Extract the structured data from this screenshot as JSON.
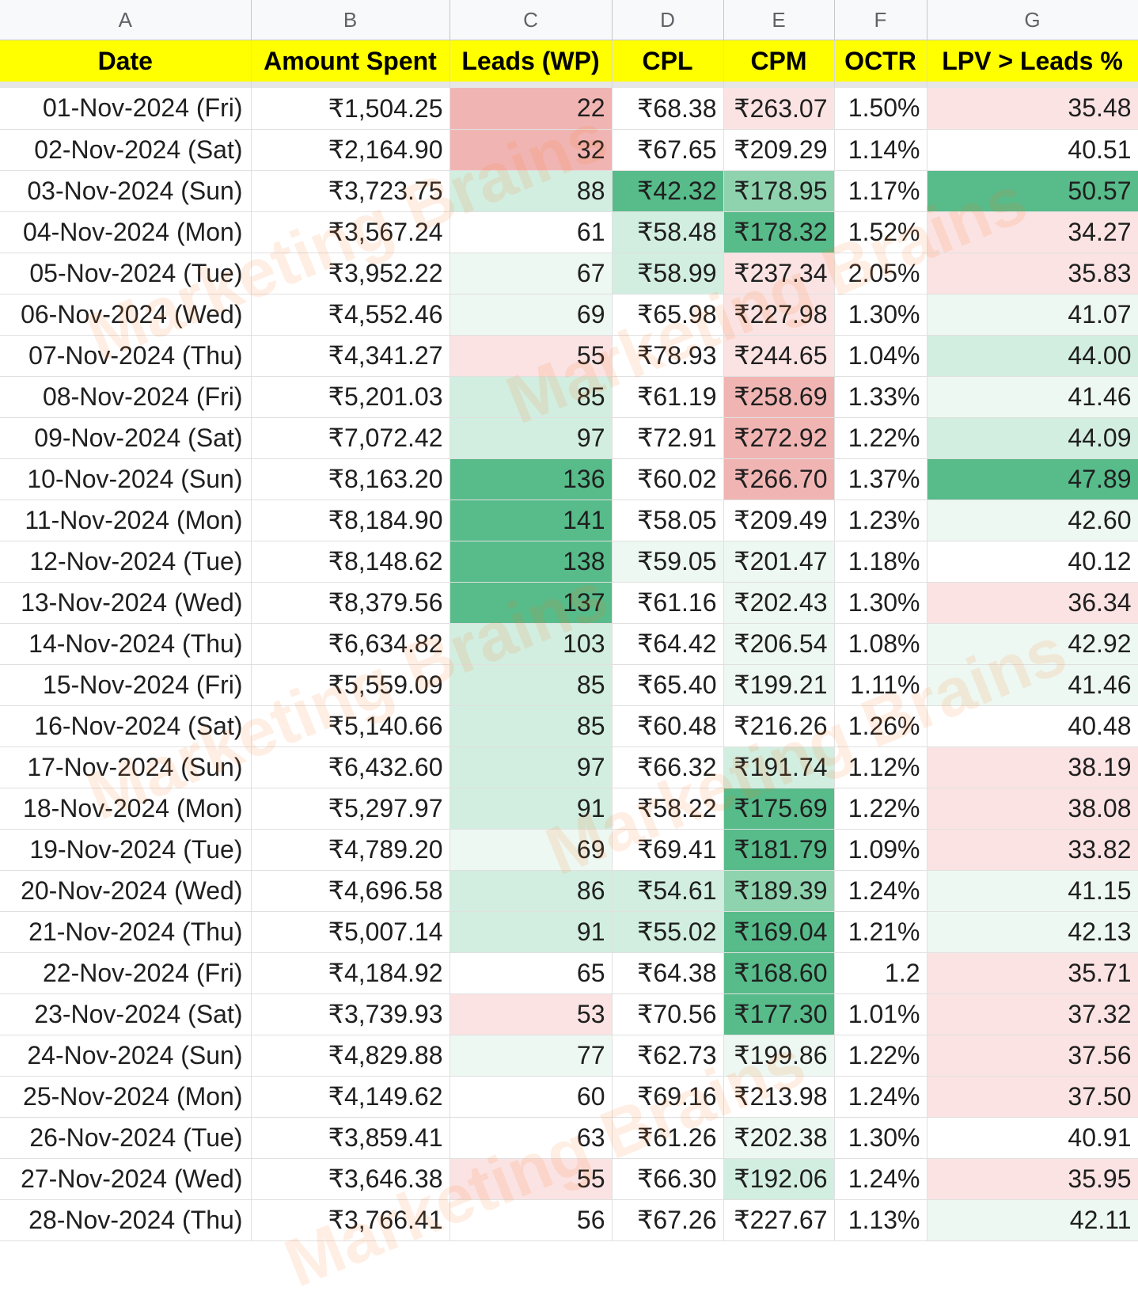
{
  "column_letters": [
    "A",
    "B",
    "C",
    "D",
    "E",
    "F",
    "G"
  ],
  "headers": {
    "date": "Date",
    "amount_spent": "Amount Spent",
    "leads": "Leads (WP)",
    "cpl": "CPL",
    "cpm": "CPM",
    "octr": "OCTR",
    "lpv_leads": "LPV > Leads %"
  },
  "watermark": "Marketing Brains",
  "colors": {
    "header_bg": "#ffff00",
    "strong_green": "#57bb8a",
    "light_green": "#d2eee0",
    "light_red": "#fbe3e3",
    "red": "#f0b5b3"
  },
  "rows": [
    {
      "date": "01-Nov-2024 (Fri)",
      "amount_spent": "₹1,504.25",
      "leads": "22",
      "cpl": "₹68.38",
      "cpm": "₹263.07",
      "octr": "1.50%",
      "lpv_leads": "35.48"
    },
    {
      "date": "02-Nov-2024 (Sat)",
      "amount_spent": "₹2,164.90",
      "leads": "32",
      "cpl": "₹67.65",
      "cpm": "₹209.29",
      "octr": "1.14%",
      "lpv_leads": "40.51"
    },
    {
      "date": "03-Nov-2024 (Sun)",
      "amount_spent": "₹3,723.75",
      "leads": "88",
      "cpl": "₹42.32",
      "cpm": "₹178.95",
      "octr": "1.17%",
      "lpv_leads": "50.57"
    },
    {
      "date": "04-Nov-2024 (Mon)",
      "amount_spent": "₹3,567.24",
      "leads": "61",
      "cpl": "₹58.48",
      "cpm": "₹178.32",
      "octr": "1.52%",
      "lpv_leads": "34.27"
    },
    {
      "date": "05-Nov-2024 (Tue)",
      "amount_spent": "₹3,952.22",
      "leads": "67",
      "cpl": "₹58.99",
      "cpm": "₹237.34",
      "octr": "2.05%",
      "lpv_leads": "35.83"
    },
    {
      "date": "06-Nov-2024 (Wed)",
      "amount_spent": "₹4,552.46",
      "leads": "69",
      "cpl": "₹65.98",
      "cpm": "₹227.98",
      "octr": "1.30%",
      "lpv_leads": "41.07"
    },
    {
      "date": "07-Nov-2024 (Thu)",
      "amount_spent": "₹4,341.27",
      "leads": "55",
      "cpl": "₹78.93",
      "cpm": "₹244.65",
      "octr": "1.04%",
      "lpv_leads": "44.00"
    },
    {
      "date": "08-Nov-2024 (Fri)",
      "amount_spent": "₹5,201.03",
      "leads": "85",
      "cpl": "₹61.19",
      "cpm": "₹258.69",
      "octr": "1.33%",
      "lpv_leads": "41.46"
    },
    {
      "date": "09-Nov-2024 (Sat)",
      "amount_spent": "₹7,072.42",
      "leads": "97",
      "cpl": "₹72.91",
      "cpm": "₹272.92",
      "octr": "1.22%",
      "lpv_leads": "44.09"
    },
    {
      "date": "10-Nov-2024 (Sun)",
      "amount_spent": "₹8,163.20",
      "leads": "136",
      "cpl": "₹60.02",
      "cpm": "₹266.70",
      "octr": "1.37%",
      "lpv_leads": "47.89"
    },
    {
      "date": "11-Nov-2024 (Mon)",
      "amount_spent": "₹8,184.90",
      "leads": "141",
      "cpl": "₹58.05",
      "cpm": "₹209.49",
      "octr": "1.23%",
      "lpv_leads": "42.60"
    },
    {
      "date": "12-Nov-2024 (Tue)",
      "amount_spent": "₹8,148.62",
      "leads": "138",
      "cpl": "₹59.05",
      "cpm": "₹201.47",
      "octr": "1.18%",
      "lpv_leads": "40.12"
    },
    {
      "date": "13-Nov-2024 (Wed)",
      "amount_spent": "₹8,379.56",
      "leads": "137",
      "cpl": "₹61.16",
      "cpm": "₹202.43",
      "octr": "1.30%",
      "lpv_leads": "36.34"
    },
    {
      "date": "14-Nov-2024 (Thu)",
      "amount_spent": "₹6,634.82",
      "leads": "103",
      "cpl": "₹64.42",
      "cpm": "₹206.54",
      "octr": "1.08%",
      "lpv_leads": "42.92"
    },
    {
      "date": "15-Nov-2024 (Fri)",
      "amount_spent": "₹5,559.09",
      "leads": "85",
      "cpl": "₹65.40",
      "cpm": "₹199.21",
      "octr": "1.11%",
      "lpv_leads": "41.46"
    },
    {
      "date": "16-Nov-2024 (Sat)",
      "amount_spent": "₹5,140.66",
      "leads": "85",
      "cpl": "₹60.48",
      "cpm": "₹216.26",
      "octr": "1.26%",
      "lpv_leads": "40.48"
    },
    {
      "date": "17-Nov-2024 (Sun)",
      "amount_spent": "₹6,432.60",
      "leads": "97",
      "cpl": "₹66.32",
      "cpm": "₹191.74",
      "octr": "1.12%",
      "lpv_leads": "38.19"
    },
    {
      "date": "18-Nov-2024 (Mon)",
      "amount_spent": "₹5,297.97",
      "leads": "91",
      "cpl": "₹58.22",
      "cpm": "₹175.69",
      "octr": "1.22%",
      "lpv_leads": "38.08"
    },
    {
      "date": "19-Nov-2024 (Tue)",
      "amount_spent": "₹4,789.20",
      "leads": "69",
      "cpl": "₹69.41",
      "cpm": "₹181.79",
      "octr": "1.09%",
      "lpv_leads": "33.82"
    },
    {
      "date": "20-Nov-2024 (Wed)",
      "amount_spent": "₹4,696.58",
      "leads": "86",
      "cpl": "₹54.61",
      "cpm": "₹189.39",
      "octr": "1.24%",
      "lpv_leads": "41.15"
    },
    {
      "date": "21-Nov-2024 (Thu)",
      "amount_spent": "₹5,007.14",
      "leads": "91",
      "cpl": "₹55.02",
      "cpm": "₹169.04",
      "octr": "1.21%",
      "lpv_leads": "42.13"
    },
    {
      "date": "22-Nov-2024 (Fri)",
      "amount_spent": "₹4,184.92",
      "leads": "65",
      "cpl": "₹64.38",
      "cpm": "₹168.60",
      "octr": "1.2",
      "lpv_leads": "35.71"
    },
    {
      "date": "23-Nov-2024 (Sat)",
      "amount_spent": "₹3,739.93",
      "leads": "53",
      "cpl": "₹70.56",
      "cpm": "₹177.30",
      "octr": "1.01%",
      "lpv_leads": "37.32"
    },
    {
      "date": "24-Nov-2024 (Sun)",
      "amount_spent": "₹4,829.88",
      "leads": "77",
      "cpl": "₹62.73",
      "cpm": "₹199.86",
      "octr": "1.22%",
      "lpv_leads": "37.56"
    },
    {
      "date": "25-Nov-2024 (Mon)",
      "amount_spent": "₹4,149.62",
      "leads": "60",
      "cpl": "₹69.16",
      "cpm": "₹213.98",
      "octr": "1.24%",
      "lpv_leads": "37.50"
    },
    {
      "date": "26-Nov-2024 (Tue)",
      "amount_spent": "₹3,859.41",
      "leads": "63",
      "cpl": "₹61.26",
      "cpm": "₹202.38",
      "octr": "1.30%",
      "lpv_leads": "40.91"
    },
    {
      "date": "27-Nov-2024 (Wed)",
      "amount_spent": "₹3,646.38",
      "leads": "55",
      "cpl": "₹66.30",
      "cpm": "₹192.06",
      "octr": "1.24%",
      "lpv_leads": "35.95"
    },
    {
      "date": "28-Nov-2024 (Thu)",
      "amount_spent": "₹3,766.41",
      "leads": "56",
      "cpl": "₹67.26",
      "cpm": "₹227.67",
      "octr": "1.13%",
      "lpv_leads": "42.11"
    }
  ]
}
